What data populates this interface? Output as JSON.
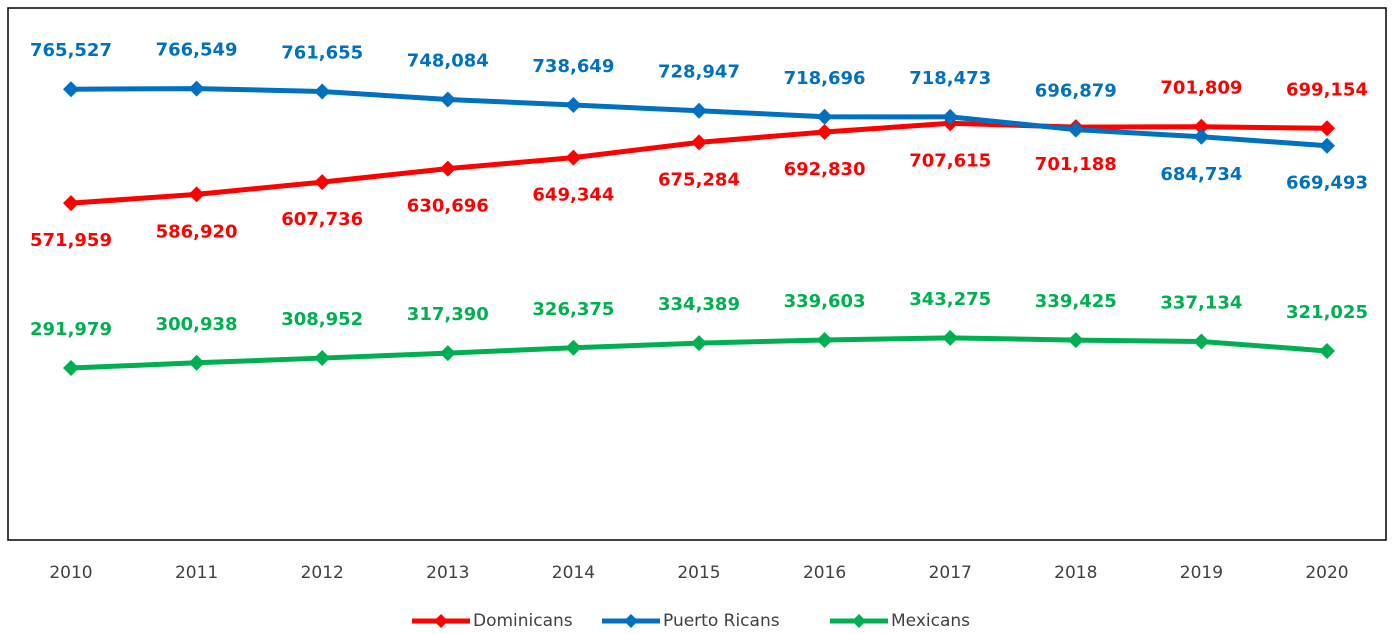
{
  "chart_data": {
    "type": "line",
    "categories": [
      "2010",
      "2011",
      "2012",
      "2013",
      "2014",
      "2015",
      "2016",
      "2017",
      "2018",
      "2019",
      "2020"
    ],
    "ylim": [
      0,
      900000
    ],
    "series": [
      {
        "name": "Dominicans",
        "color": "#ff0000",
        "values": [
          571959,
          586920,
          607736,
          630696,
          649344,
          675284,
          692830,
          707615,
          701188,
          701809,
          699154
        ],
        "value_labels": [
          "571,959",
          "586,920",
          "607,736",
          "630,696",
          "649,344",
          "675,284",
          "692,830",
          "707,615",
          "701,188",
          "701,809",
          "699,154"
        ]
      },
      {
        "name": "Puerto Ricans",
        "color": "#0070c0",
        "values": [
          765527,
          766549,
          761655,
          748084,
          738649,
          728947,
          718696,
          718473,
          696879,
          684734,
          669493
        ],
        "value_labels": [
          "765,527",
          "766,549",
          "761,655",
          "748,084",
          "738,649",
          "728,947",
          "718,696",
          "718,473",
          "696,879",
          "684,734",
          "669,493"
        ]
      },
      {
        "name": "Mexicans",
        "color": "#00b050",
        "values": [
          291979,
          300938,
          308952,
          317390,
          326375,
          334389,
          339603,
          343275,
          339425,
          337134,
          321025
        ],
        "value_labels": [
          "291,979",
          "300,938",
          "308,952",
          "317,390",
          "326,375",
          "334,389",
          "339,603",
          "343,275",
          "339,425",
          "337,134",
          "321,025"
        ]
      }
    ]
  }
}
